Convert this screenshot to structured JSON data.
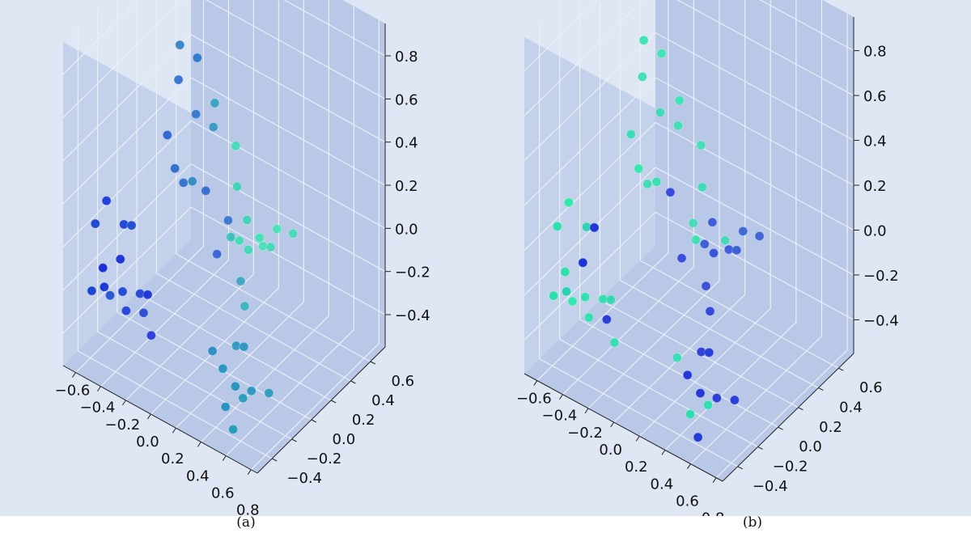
{
  "figure": {
    "panels": [
      {
        "id": "a",
        "caption": "(a)"
      },
      {
        "id": "b",
        "caption": "(b)"
      }
    ]
  },
  "colors": {
    "pane": "#b8c8e6",
    "pane_side": "#c3d1ea",
    "grid": "#ebeff7",
    "color_low": "#1414dc",
    "color_high": "#28f5a5"
  },
  "chart_data": [
    {
      "type": "scatter",
      "projection": "3d",
      "title": "",
      "xlabel": "",
      "ylabel": "",
      "zlabel": "",
      "xlim": [
        -0.7,
        0.85
      ],
      "ylim": [
        -0.55,
        0.75
      ],
      "zlim": [
        -0.55,
        0.95
      ],
      "xticks": [
        "−0.6",
        "−0.4",
        "−0.2",
        "0.0",
        "0.2",
        "0.4",
        "0.6",
        "0.8"
      ],
      "yticks": [
        "−0.4",
        "−0.2",
        "0.0",
        "0.2",
        "0.4",
        "0.6"
      ],
      "zticks": [
        "−0.4",
        "−0.2",
        "0.0",
        "0.2",
        "0.4",
        "0.6",
        "0.8"
      ],
      "grid": true,
      "colormap": "winter",
      "points": [
        {
          "x": -0.6,
          "y": -0.35,
          "z": 0.05,
          "c": 0.2
        },
        {
          "x": -0.55,
          "y": -0.3,
          "z": 0.15,
          "c": 0.15
        },
        {
          "x": -0.5,
          "y": -0.4,
          "z": -0.1,
          "c": 0.1
        },
        {
          "x": -0.45,
          "y": -0.25,
          "z": 0.05,
          "c": 0.18
        },
        {
          "x": -0.4,
          "y": -0.35,
          "z": -0.05,
          "c": 0.12
        },
        {
          "x": -0.35,
          "y": -0.3,
          "z": 0.1,
          "c": 0.22
        },
        {
          "x": -0.55,
          "y": -0.45,
          "z": -0.2,
          "c": 0.2
        },
        {
          "x": -0.45,
          "y": -0.45,
          "z": -0.15,
          "c": 0.15
        },
        {
          "x": -0.6,
          "y": -0.2,
          "z": -0.35,
          "c": 0.25
        },
        {
          "x": -0.5,
          "y": -0.2,
          "z": -0.3,
          "c": 0.2
        },
        {
          "x": -0.4,
          "y": -0.15,
          "z": -0.3,
          "c": 0.18
        },
        {
          "x": -0.3,
          "y": -0.2,
          "z": -0.25,
          "c": 0.1
        },
        {
          "x": -0.55,
          "y": -0.1,
          "z": -0.45,
          "c": 0.15
        },
        {
          "x": -0.45,
          "y": -0.05,
          "z": -0.45,
          "c": 0.2
        },
        {
          "x": -0.35,
          "y": -0.1,
          "z": -0.5,
          "c": 0.12
        },
        {
          "x": -0.2,
          "y": 0.0,
          "z": 0.85,
          "c": 0.45
        },
        {
          "x": -0.1,
          "y": 0.05,
          "z": 0.8,
          "c": 0.4
        },
        {
          "x": -0.25,
          "y": 0.05,
          "z": 0.65,
          "c": 0.35
        },
        {
          "x": 0.0,
          "y": 0.1,
          "z": 0.6,
          "c": 0.6
        },
        {
          "x": -0.15,
          "y": 0.1,
          "z": 0.5,
          "c": 0.4
        },
        {
          "x": -0.05,
          "y": 0.15,
          "z": 0.45,
          "c": 0.55
        },
        {
          "x": -0.3,
          "y": 0.0,
          "z": 0.4,
          "c": 0.3
        },
        {
          "x": -0.2,
          "y": -0.05,
          "z": 0.3,
          "c": 0.35
        },
        {
          "x": -0.1,
          "y": 0.0,
          "z": 0.25,
          "c": 0.5
        },
        {
          "x": -0.25,
          "y": 0.1,
          "z": 0.15,
          "c": 0.35
        },
        {
          "x": -0.15,
          "y": 0.2,
          "z": 0.1,
          "c": 0.3
        },
        {
          "x": 0.05,
          "y": 0.25,
          "z": 0.35,
          "c": 0.9
        },
        {
          "x": 0.1,
          "y": 0.2,
          "z": 0.2,
          "c": 0.85
        },
        {
          "x": -0.05,
          "y": 0.3,
          "z": -0.05,
          "c": 0.35
        },
        {
          "x": 0.05,
          "y": 0.2,
          "z": -0.05,
          "c": 0.75
        },
        {
          "x": 0.1,
          "y": 0.3,
          "z": 0.0,
          "c": 0.85
        },
        {
          "x": 0.15,
          "y": 0.25,
          "z": -0.1,
          "c": 0.9
        },
        {
          "x": 0.0,
          "y": 0.35,
          "z": -0.15,
          "c": 0.9
        },
        {
          "x": 0.2,
          "y": 0.3,
          "z": -0.05,
          "c": 0.95
        },
        {
          "x": 0.15,
          "y": 0.4,
          "z": -0.15,
          "c": 0.92
        },
        {
          "x": 0.25,
          "y": 0.35,
          "z": -0.1,
          "c": 0.88
        },
        {
          "x": -0.1,
          "y": 0.25,
          "z": -0.2,
          "c": 0.25
        },
        {
          "x": 0.3,
          "y": 0.35,
          "z": 0.0,
          "c": 0.95
        },
        {
          "x": 0.35,
          "y": 0.45,
          "z": -0.05,
          "c": 0.9
        },
        {
          "x": 0.05,
          "y": 0.3,
          "z": -0.3,
          "c": 0.6
        },
        {
          "x": 0.2,
          "y": 0.15,
          "z": -0.3,
          "c": 0.7
        },
        {
          "x": 0.25,
          "y": 0.0,
          "z": -0.4,
          "c": 0.55
        },
        {
          "x": 0.1,
          "y": -0.05,
          "z": -0.45,
          "c": 0.5
        },
        {
          "x": 0.35,
          "y": -0.05,
          "z": -0.35,
          "c": 0.55
        },
        {
          "x": 0.3,
          "y": -0.2,
          "z": -0.4,
          "c": 0.55
        },
        {
          "x": 0.4,
          "y": -0.2,
          "z": -0.45,
          "c": 0.55
        },
        {
          "x": 0.5,
          "y": -0.25,
          "z": -0.45,
          "c": 0.6
        },
        {
          "x": 0.45,
          "y": -0.1,
          "z": -0.5,
          "c": 0.55
        },
        {
          "x": 0.55,
          "y": -0.05,
          "z": -0.5,
          "c": 0.58
        },
        {
          "x": 0.4,
          "y": -0.3,
          "z": -0.5,
          "c": 0.55
        },
        {
          "x": 0.5,
          "y": -0.35,
          "z": -0.55,
          "c": 0.6
        }
      ]
    },
    {
      "type": "scatter",
      "projection": "3d",
      "title": "",
      "xlabel": "",
      "ylabel": "",
      "zlabel": "",
      "xlim": [
        -0.7,
        0.85
      ],
      "ylim": [
        -0.55,
        0.75
      ],
      "zlim": [
        -0.55,
        0.95
      ],
      "xticks": [
        "−0.6",
        "−0.4",
        "−0.2",
        "0.0",
        "0.2",
        "0.4",
        "0.6",
        "0.8"
      ],
      "yticks": [
        "−0.4",
        "−0.2",
        "0.0",
        "0.2",
        "0.4",
        "0.6"
      ],
      "zticks": [
        "−0.4",
        "−0.2",
        "0.0",
        "0.2",
        "0.4",
        "0.6",
        "0.8"
      ],
      "grid": true,
      "colormap": "winter",
      "points": [
        {
          "x": -0.6,
          "y": -0.35,
          "z": 0.05,
          "c": 0.9
        },
        {
          "x": -0.55,
          "y": -0.3,
          "z": 0.15,
          "c": 0.95
        },
        {
          "x": -0.5,
          "y": -0.4,
          "z": -0.1,
          "c": 0.9
        },
        {
          "x": -0.45,
          "y": -0.25,
          "z": 0.05,
          "c": 0.85
        },
        {
          "x": -0.4,
          "y": -0.35,
          "z": -0.05,
          "c": 0.1
        },
        {
          "x": -0.35,
          "y": -0.3,
          "z": 0.1,
          "c": 0.1
        },
        {
          "x": -0.55,
          "y": -0.45,
          "z": -0.2,
          "c": 0.9
        },
        {
          "x": -0.45,
          "y": -0.45,
          "z": -0.15,
          "c": 0.85
        },
        {
          "x": -0.6,
          "y": -0.2,
          "z": -0.35,
          "c": 0.95
        },
        {
          "x": -0.5,
          "y": -0.2,
          "z": -0.3,
          "c": 0.9
        },
        {
          "x": -0.4,
          "y": -0.15,
          "z": -0.3,
          "c": 0.9
        },
        {
          "x": -0.3,
          "y": -0.2,
          "z": -0.25,
          "c": 0.88
        },
        {
          "x": -0.55,
          "y": -0.1,
          "z": -0.45,
          "c": 0.92
        },
        {
          "x": -0.45,
          "y": -0.05,
          "z": -0.45,
          "c": 0.1
        },
        {
          "x": -0.35,
          "y": -0.1,
          "z": -0.5,
          "c": 0.9
        },
        {
          "x": -0.2,
          "y": 0.0,
          "z": 0.85,
          "c": 0.92
        },
        {
          "x": -0.1,
          "y": 0.05,
          "z": 0.8,
          "c": 0.95
        },
        {
          "x": -0.25,
          "y": 0.05,
          "z": 0.65,
          "c": 0.9
        },
        {
          "x": 0.0,
          "y": 0.1,
          "z": 0.6,
          "c": 0.95
        },
        {
          "x": -0.15,
          "y": 0.1,
          "z": 0.5,
          "c": 0.9
        },
        {
          "x": -0.05,
          "y": 0.15,
          "z": 0.45,
          "c": 0.92
        },
        {
          "x": -0.3,
          "y": 0.0,
          "z": 0.4,
          "c": 0.9
        },
        {
          "x": -0.2,
          "y": -0.05,
          "z": 0.3,
          "c": 0.95
        },
        {
          "x": -0.1,
          "y": 0.0,
          "z": 0.25,
          "c": 0.92
        },
        {
          "x": -0.25,
          "y": 0.1,
          "z": 0.15,
          "c": 0.9
        },
        {
          "x": -0.15,
          "y": 0.2,
          "z": 0.1,
          "c": 0.1
        },
        {
          "x": 0.05,
          "y": 0.25,
          "z": 0.35,
          "c": 0.92
        },
        {
          "x": 0.1,
          "y": 0.2,
          "z": 0.2,
          "c": 0.9
        },
        {
          "x": -0.05,
          "y": 0.3,
          "z": -0.05,
          "c": 0.9
        },
        {
          "x": 0.05,
          "y": 0.2,
          "z": -0.05,
          "c": 0.92
        },
        {
          "x": 0.1,
          "y": 0.3,
          "z": 0.0,
          "c": 0.2
        },
        {
          "x": 0.15,
          "y": 0.25,
          "z": -0.1,
          "c": 0.15
        },
        {
          "x": 0.0,
          "y": 0.35,
          "z": -0.15,
          "c": 0.2
        },
        {
          "x": 0.2,
          "y": 0.3,
          "z": -0.05,
          "c": 0.9
        },
        {
          "x": 0.15,
          "y": 0.4,
          "z": -0.15,
          "c": 0.15
        },
        {
          "x": 0.25,
          "y": 0.35,
          "z": -0.1,
          "c": 0.2
        },
        {
          "x": -0.1,
          "y": 0.25,
          "z": -0.2,
          "c": 0.1
        },
        {
          "x": 0.3,
          "y": 0.35,
          "z": 0.0,
          "c": 0.25
        },
        {
          "x": 0.35,
          "y": 0.45,
          "z": -0.05,
          "c": 0.2
        },
        {
          "x": 0.05,
          "y": 0.3,
          "z": -0.3,
          "c": 0.12
        },
        {
          "x": 0.2,
          "y": 0.15,
          "z": -0.3,
          "c": 0.1
        },
        {
          "x": 0.25,
          "y": 0.0,
          "z": -0.4,
          "c": 0.1
        },
        {
          "x": 0.1,
          "y": -0.05,
          "z": -0.45,
          "c": 0.9
        },
        {
          "x": 0.35,
          "y": -0.05,
          "z": -0.35,
          "c": 0.1
        },
        {
          "x": 0.3,
          "y": -0.2,
          "z": -0.4,
          "c": 0.1
        },
        {
          "x": 0.4,
          "y": -0.2,
          "z": -0.45,
          "c": 0.1
        },
        {
          "x": 0.5,
          "y": -0.25,
          "z": -0.45,
          "c": 0.9
        },
        {
          "x": 0.45,
          "y": -0.1,
          "z": -0.5,
          "c": 0.1
        },
        {
          "x": 0.55,
          "y": -0.05,
          "z": -0.5,
          "c": 0.1
        },
        {
          "x": 0.4,
          "y": -0.3,
          "z": -0.5,
          "c": 0.9
        },
        {
          "x": 0.5,
          "y": -0.35,
          "z": -0.55,
          "c": 0.15
        }
      ]
    }
  ]
}
